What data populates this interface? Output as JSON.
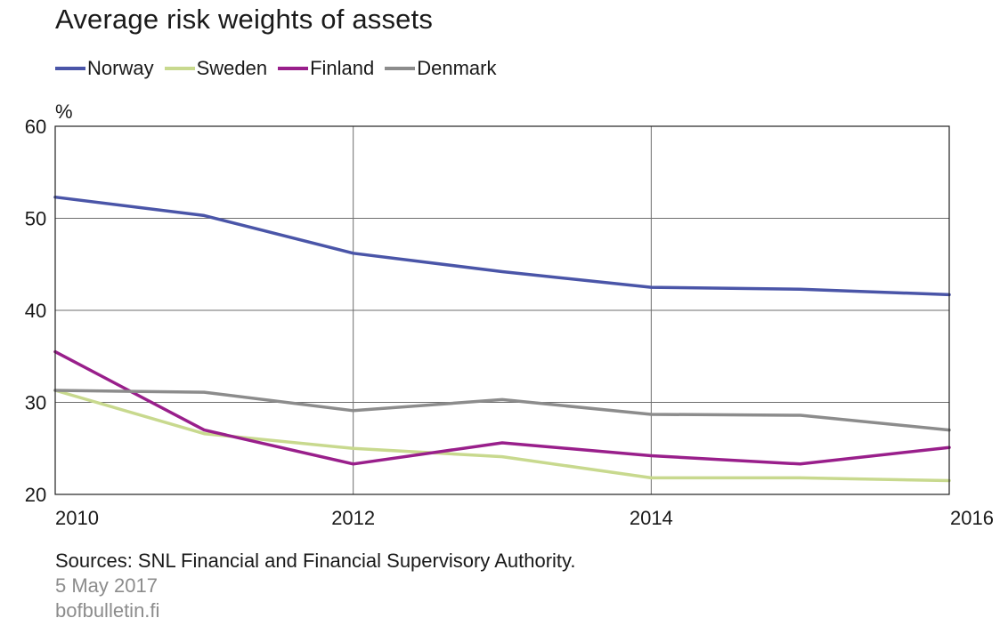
{
  "chart_data": {
    "type": "line",
    "title": "Average risk weights of assets",
    "ylabel": "%",
    "xlabel": "",
    "x": [
      2010,
      2011,
      2012,
      2013,
      2014,
      2015,
      2016
    ],
    "xlim": [
      2010,
      2016
    ],
    "ylim": [
      20,
      60
    ],
    "x_ticks": [
      2010,
      2012,
      2014,
      2016
    ],
    "y_ticks": [
      20,
      30,
      40,
      50,
      60
    ],
    "grid": true,
    "legend_position": "top",
    "series": [
      {
        "name": "Norway",
        "color": "#4a55a8",
        "values": [
          52.3,
          50.3,
          46.2,
          44.2,
          42.5,
          42.3,
          41.7
        ]
      },
      {
        "name": "Sweden",
        "color": "#c8d98e",
        "values": [
          31.3,
          26.6,
          25.0,
          24.1,
          21.8,
          21.8,
          21.5
        ]
      },
      {
        "name": "Finland",
        "color": "#991f8b",
        "values": [
          35.5,
          27.0,
          23.3,
          25.6,
          24.2,
          23.3,
          25.1
        ]
      },
      {
        "name": "Denmark",
        "color": "#8c8c8c",
        "values": [
          31.3,
          31.1,
          29.1,
          30.3,
          28.7,
          28.6,
          27.0
        ]
      }
    ]
  },
  "footer": {
    "sources": "Sources: SNL Financial and Financial Supervisory Authority.",
    "date": "5 May 2017",
    "site": "bofbulletin.fi"
  }
}
